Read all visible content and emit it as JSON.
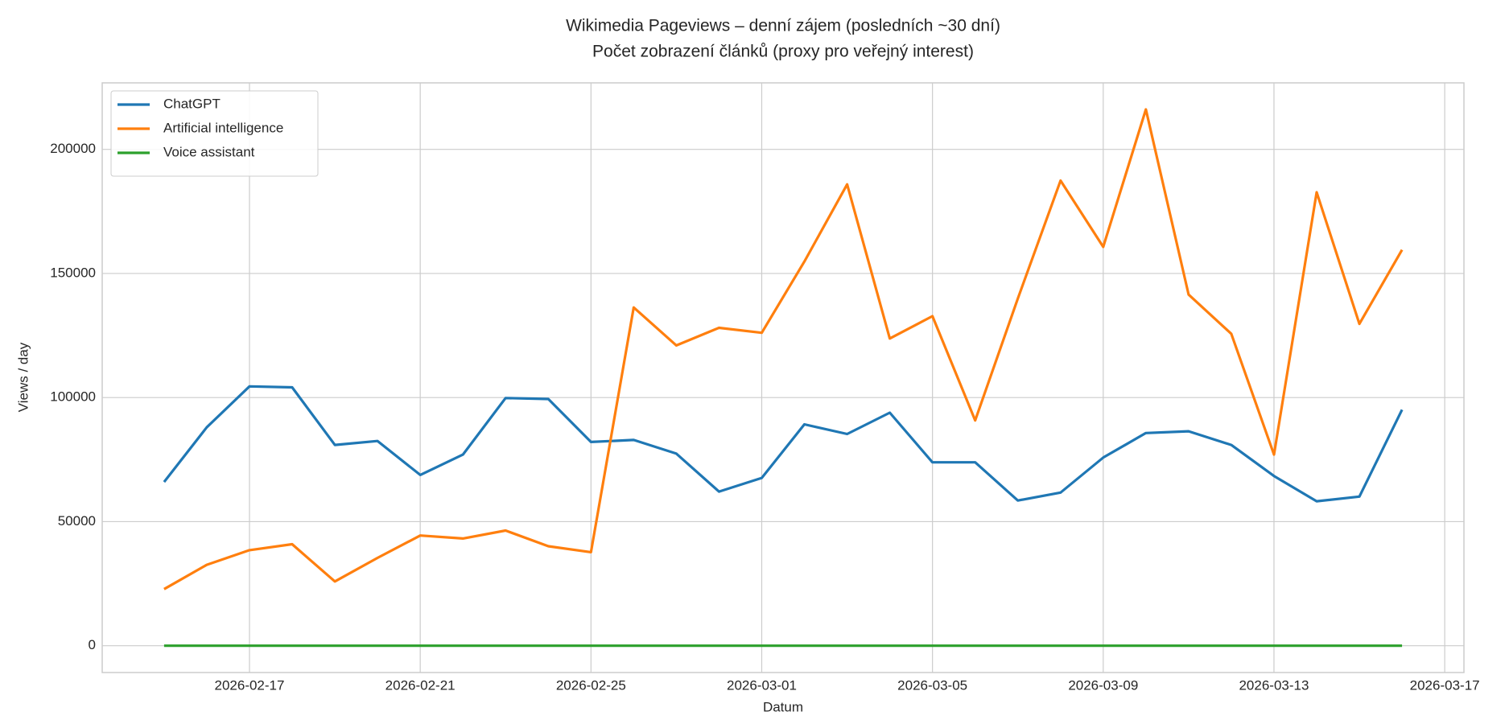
{
  "chart_data": {
    "type": "line",
    "title": "Wikimedia Pageviews – denní zájem (posledních ~30 dní)",
    "subtitle": "Počet zobrazení článků (proxy pro veřejný interest)",
    "x_label": "Datum",
    "y_label": "Views / day",
    "x": [
      "2026-02-15",
      "2026-02-16",
      "2026-02-17",
      "2026-02-18",
      "2026-02-19",
      "2026-02-20",
      "2026-02-21",
      "2026-02-22",
      "2026-02-23",
      "2026-02-24",
      "2026-02-25",
      "2026-02-26",
      "2026-02-27",
      "2026-02-28",
      "2026-03-01",
      "2026-03-02",
      "2026-03-03",
      "2026-03-04",
      "2026-03-05",
      "2026-03-06",
      "2026-03-07",
      "2026-03-08",
      "2026-03-09",
      "2026-03-10",
      "2026-03-11",
      "2026-03-12",
      "2026-03-13",
      "2026-03-14",
      "2026-03-15",
      "2026-03-16"
    ],
    "series": [
      {
        "name": "ChatGPT",
        "color": "#1f77b4",
        "values": [
          66000,
          88000,
          104500,
          104100,
          80900,
          82500,
          68800,
          77000,
          99800,
          99400,
          82100,
          82900,
          77400,
          62100,
          67600,
          89200,
          85300,
          93900,
          73900,
          73900,
          58500,
          61700,
          75800,
          85700,
          86400,
          80900,
          68400,
          58200,
          60100,
          95100
        ]
      },
      {
        "name": "Artificial intelligence",
        "color": "#ff7f0e",
        "values": [
          22800,
          32600,
          38500,
          40900,
          25900,
          35400,
          44400,
          43200,
          46400,
          40100,
          37700,
          136300,
          121000,
          128100,
          126100,
          154800,
          185900,
          123800,
          132800,
          90800,
          139900,
          187400,
          160700,
          216100,
          141500,
          125700,
          77000,
          182700,
          129700,
          159500
        ]
      },
      {
        "name": "Voice assistant",
        "color": "#2ca02c",
        "values": [
          0,
          0,
          0,
          0,
          0,
          0,
          0,
          0,
          0,
          0,
          0,
          0,
          0,
          0,
          0,
          0,
          0,
          0,
          0,
          0,
          0,
          0,
          0,
          0,
          0,
          0,
          0,
          0,
          0,
          0
        ]
      }
    ],
    "xlim": [
      "2026-02-13T13:12",
      "2026-03-17T10:48"
    ],
    "xticks": [
      "2026-02-17",
      "2026-02-21",
      "2026-02-25",
      "2026-03-01",
      "2026-03-05",
      "2026-03-09",
      "2026-03-13",
      "2026-03-17"
    ],
    "ylim": [
      -10800,
      226800
    ],
    "yticks": [
      0,
      50000,
      100000,
      150000,
      200000
    ],
    "grid": true,
    "legend": "upper left"
  }
}
